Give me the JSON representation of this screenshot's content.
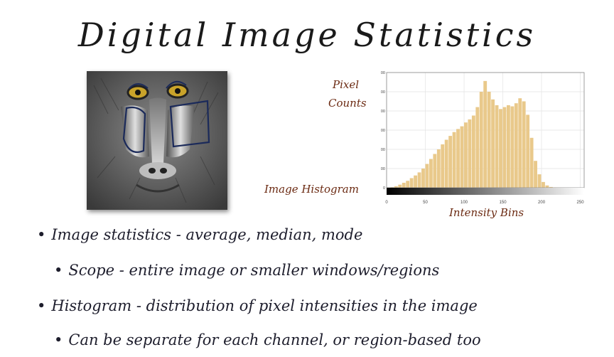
{
  "title": "Digital Image Statistics",
  "figure_labels": {
    "pixel": "Pixel",
    "counts": "Counts",
    "image_histogram": "Image Histogram",
    "intensity_bins": "Intensity Bins"
  },
  "chart_data": {
    "type": "bar",
    "title": "",
    "xlabel": "Intensity Bins",
    "ylabel": "Pixel Counts",
    "xlim": [
      0,
      255
    ],
    "ylim": [
      0,
      3000
    ],
    "x_ticks": [
      0,
      50,
      100,
      150,
      200,
      250
    ],
    "y_ticks": [
      0,
      500,
      1000,
      1500,
      2000,
      2500,
      3000
    ],
    "grid": true,
    "bar_color": "#e9c98b",
    "x": [
      0,
      5,
      10,
      15,
      20,
      25,
      30,
      35,
      40,
      45,
      50,
      55,
      60,
      65,
      70,
      75,
      80,
      85,
      90,
      95,
      100,
      105,
      110,
      115,
      120,
      125,
      130,
      135,
      140,
      145,
      150,
      155,
      160,
      165,
      170,
      175,
      180,
      185,
      190,
      195,
      200,
      205,
      210,
      215,
      220,
      225,
      230,
      235,
      240,
      245,
      250,
      255
    ],
    "values": [
      5,
      15,
      40,
      80,
      130,
      180,
      250,
      320,
      400,
      500,
      620,
      750,
      880,
      1000,
      1130,
      1250,
      1350,
      1450,
      1530,
      1600,
      1700,
      1780,
      1880,
      2100,
      2500,
      2780,
      2500,
      2300,
      2150,
      2050,
      2100,
      2150,
      2120,
      2200,
      2330,
      2250,
      1900,
      1300,
      700,
      350,
      150,
      60,
      20,
      8,
      3,
      1,
      0,
      0,
      0,
      0,
      0,
      0
    ]
  },
  "bullets": [
    {
      "text": "Image statistics - average, median, mode",
      "level": 1
    },
    {
      "text": "Scope - entire image or smaller windows/regions",
      "level": 2
    },
    {
      "text": "Histogram - distribution of pixel intensities in the image",
      "level": 1
    },
    {
      "text": "Can be separate for each channel, or region-based too",
      "level": 2
    }
  ],
  "colors": {
    "annotation_ink": "#6b2a12",
    "bullet_ink": "#1d1d2c",
    "photo_markup": "#1b2a5a"
  }
}
